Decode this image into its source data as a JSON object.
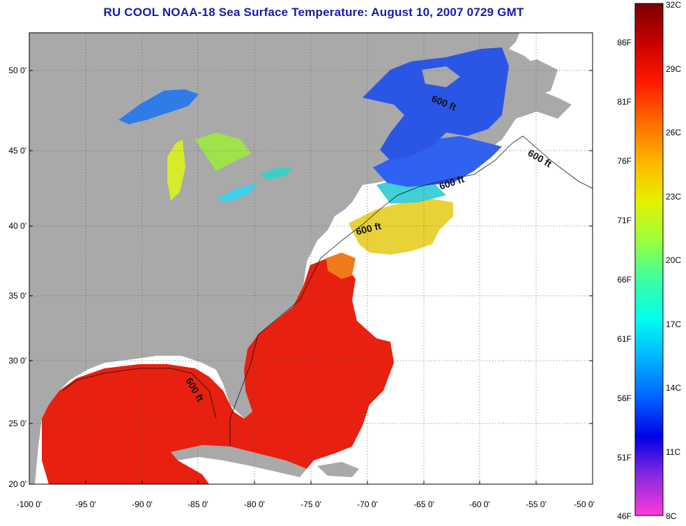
{
  "title": "RU COOL  NOAA-18  Sea Surface Temperature:  August 10, 2007 0729 GMT",
  "map": {
    "lon_ticks": [
      "-100 0'",
      "-95 0'",
      "-90 0'",
      "-85 0'",
      "-80 0'",
      "-75 0'",
      "-70 0'",
      "-65 0'",
      "-60 0'",
      "-55 0'",
      "-50 0'"
    ],
    "lat_ticks": [
      "50 0'",
      "45 0'",
      "40 0'",
      "35 0'",
      "30 0'",
      "25 0'",
      "20 0'"
    ],
    "contour_labels": [
      "600 ft",
      "600 ft",
      "600 ft",
      "600 ft",
      "600 ft"
    ],
    "colors": {
      "land": "#a9a9a9",
      "no_data": "#ffffff",
      "warm_sst": "#e8200f",
      "cool_sst": "#2f62f0"
    }
  },
  "colorbar": {
    "fahrenheit_labels": [
      "86F",
      "81F",
      "76F",
      "71F",
      "66F",
      "61F",
      "56F",
      "51F",
      "46F"
    ],
    "celsius_labels": [
      "32C",
      "29C",
      "26C",
      "23C",
      "20C",
      "17C",
      "14C",
      "11C",
      "8C"
    ],
    "gradient_colors": [
      "#7a0000",
      "#c80000",
      "#ff1a00",
      "#ff6a00",
      "#ffb400",
      "#e6f000",
      "#9cff3a",
      "#3cffa0",
      "#00ffee",
      "#00b4ff",
      "#0064ff",
      "#0000e6",
      "#8a2ae0",
      "#ff3ad8"
    ]
  }
}
